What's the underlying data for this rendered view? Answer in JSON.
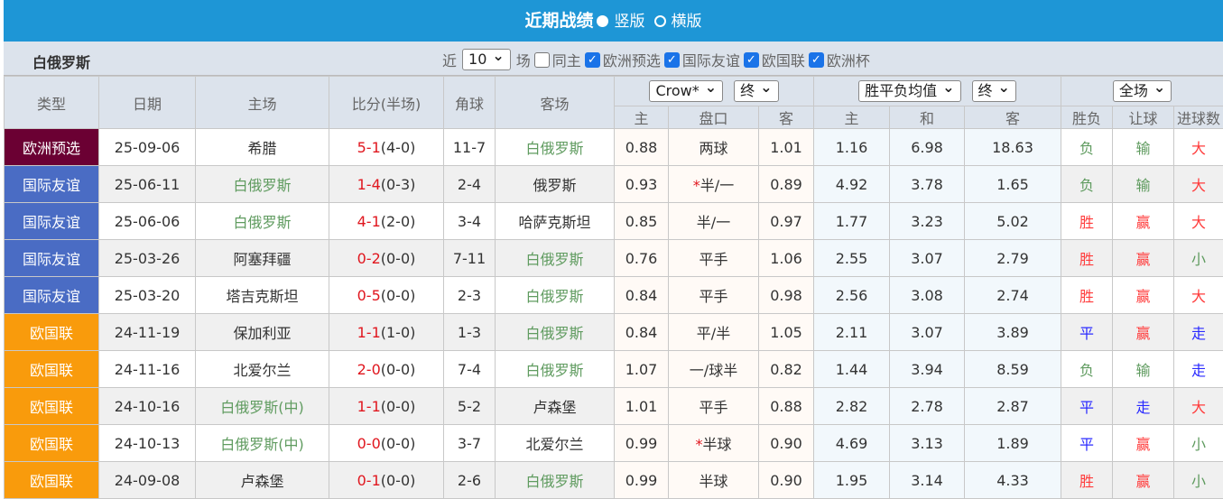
{
  "header": {
    "title": "近期战绩",
    "option_vertical": "竖版",
    "option_horizontal": "横版",
    "selected": "竖版"
  },
  "filter": {
    "team": "白俄罗斯",
    "recent_label": "近",
    "recent_count": "10",
    "games_label": "场",
    "same_home": {
      "label": "同主",
      "checked": false
    },
    "competitions": [
      {
        "label": "欧洲预选",
        "checked": true
      },
      {
        "label": "国际友谊",
        "checked": true
      },
      {
        "label": "欧国联",
        "checked": true
      },
      {
        "label": "欧洲杯",
        "checked": true
      }
    ]
  },
  "columns": {
    "type": "类型",
    "date": "日期",
    "home": "主场",
    "score": "比分(半场)",
    "corner": "角球",
    "away": "客场",
    "handicap_company": "Crow*",
    "handicap_stage": "终",
    "euro_company": "胜平负均值",
    "euro_stage": "终",
    "result_scope": "全场",
    "h_home": "主",
    "h_line": "盘口",
    "h_away": "客",
    "e_home": "主",
    "e_draw": "和",
    "e_away": "客",
    "r_wl": "胜负",
    "r_handicap": "让球",
    "r_goals": "进球数"
  },
  "colors": {
    "欧洲预选": "#6b0033",
    "国际友谊": "#4a6cc4",
    "欧国联": "#f99b0c",
    "win": "#ff3b3b",
    "loss": "#5f9b5f",
    "draw": "#2a2aff",
    "header": "#1e96d6"
  },
  "rows": [
    {
      "type": "欧洲预选",
      "date": "25-09-06",
      "home": "希腊",
      "score": "5-1",
      "half": "(4-0)",
      "corner": "11-7",
      "away": "白俄罗斯",
      "hl": "away",
      "oh": "0.88",
      "line": "两球",
      "star": false,
      "oa": "1.01",
      "eh": "1.16",
      "ed": "6.98",
      "ea": "18.63",
      "wl": "负",
      "hc": "输",
      "goals": "大"
    },
    {
      "type": "国际友谊",
      "date": "25-06-11",
      "home": "白俄罗斯",
      "score": "1-4",
      "half": "(0-3)",
      "corner": "2-4",
      "away": "俄罗斯",
      "hl": "home",
      "oh": "0.93",
      "line": "半/一",
      "star": true,
      "oa": "0.89",
      "eh": "4.92",
      "ed": "3.78",
      "ea": "1.65",
      "wl": "负",
      "hc": "输",
      "goals": "大"
    },
    {
      "type": "国际友谊",
      "date": "25-06-06",
      "home": "白俄罗斯",
      "score": "4-1",
      "half": "(2-0)",
      "corner": "3-4",
      "away": "哈萨克斯坦",
      "hl": "home",
      "oh": "0.85",
      "line": "半/一",
      "star": false,
      "oa": "0.97",
      "eh": "1.77",
      "ed": "3.23",
      "ea": "5.02",
      "wl": "胜",
      "hc": "赢",
      "goals": "大"
    },
    {
      "type": "国际友谊",
      "date": "25-03-26",
      "home": "阿塞拜疆",
      "score": "0-2",
      "half": "(0-0)",
      "corner": "7-11",
      "away": "白俄罗斯",
      "hl": "away",
      "oh": "0.76",
      "line": "平手",
      "star": false,
      "oa": "1.06",
      "eh": "2.55",
      "ed": "3.07",
      "ea": "2.79",
      "wl": "胜",
      "hc": "赢",
      "goals": "小"
    },
    {
      "type": "国际友谊",
      "date": "25-03-20",
      "home": "塔吉克斯坦",
      "score": "0-5",
      "half": "(0-0)",
      "corner": "2-3",
      "away": "白俄罗斯",
      "hl": "away",
      "oh": "0.84",
      "line": "平手",
      "star": false,
      "oa": "0.98",
      "eh": "2.56",
      "ed": "3.08",
      "ea": "2.74",
      "wl": "胜",
      "hc": "赢",
      "goals": "大"
    },
    {
      "type": "欧国联",
      "date": "24-11-19",
      "home": "保加利亚",
      "score": "1-1",
      "half": "(1-0)",
      "corner": "1-3",
      "away": "白俄罗斯",
      "hl": "away",
      "oh": "0.84",
      "line": "平/半",
      "star": false,
      "oa": "1.05",
      "eh": "2.11",
      "ed": "3.07",
      "ea": "3.89",
      "wl": "平",
      "hc": "赢",
      "goals": "走"
    },
    {
      "type": "欧国联",
      "date": "24-11-16",
      "home": "北爱尔兰",
      "score": "2-0",
      "half": "(0-0)",
      "corner": "7-4",
      "away": "白俄罗斯",
      "hl": "away",
      "oh": "1.07",
      "line": "一/球半",
      "star": false,
      "oa": "0.82",
      "eh": "1.44",
      "ed": "3.94",
      "ea": "8.59",
      "wl": "负",
      "hc": "输",
      "goals": "走"
    },
    {
      "type": "欧国联",
      "date": "24-10-16",
      "home": "白俄罗斯(中)",
      "score": "1-1",
      "half": "(0-0)",
      "corner": "5-2",
      "away": "卢森堡",
      "hl": "home",
      "oh": "1.01",
      "line": "平手",
      "star": false,
      "oa": "0.88",
      "eh": "2.82",
      "ed": "2.78",
      "ea": "2.87",
      "wl": "平",
      "hc": "走",
      "goals": "大"
    },
    {
      "type": "欧国联",
      "date": "24-10-13",
      "home": "白俄罗斯(中)",
      "score": "0-0",
      "half": "(0-0)",
      "corner": "3-7",
      "away": "北爱尔兰",
      "hl": "home",
      "oh": "0.99",
      "line": "半球",
      "star": true,
      "oa": "0.90",
      "eh": "4.69",
      "ed": "3.13",
      "ea": "1.89",
      "wl": "平",
      "hc": "赢",
      "goals": "小"
    },
    {
      "type": "欧国联",
      "date": "24-09-08",
      "home": "卢森堡",
      "score": "0-1",
      "half": "(0-0)",
      "corner": "2-6",
      "away": "白俄罗斯",
      "hl": "away",
      "oh": "0.99",
      "line": "半球",
      "star": false,
      "oa": "0.90",
      "eh": "1.95",
      "ed": "3.14",
      "ea": "4.33",
      "wl": "胜",
      "hc": "赢",
      "goals": "小"
    }
  ]
}
